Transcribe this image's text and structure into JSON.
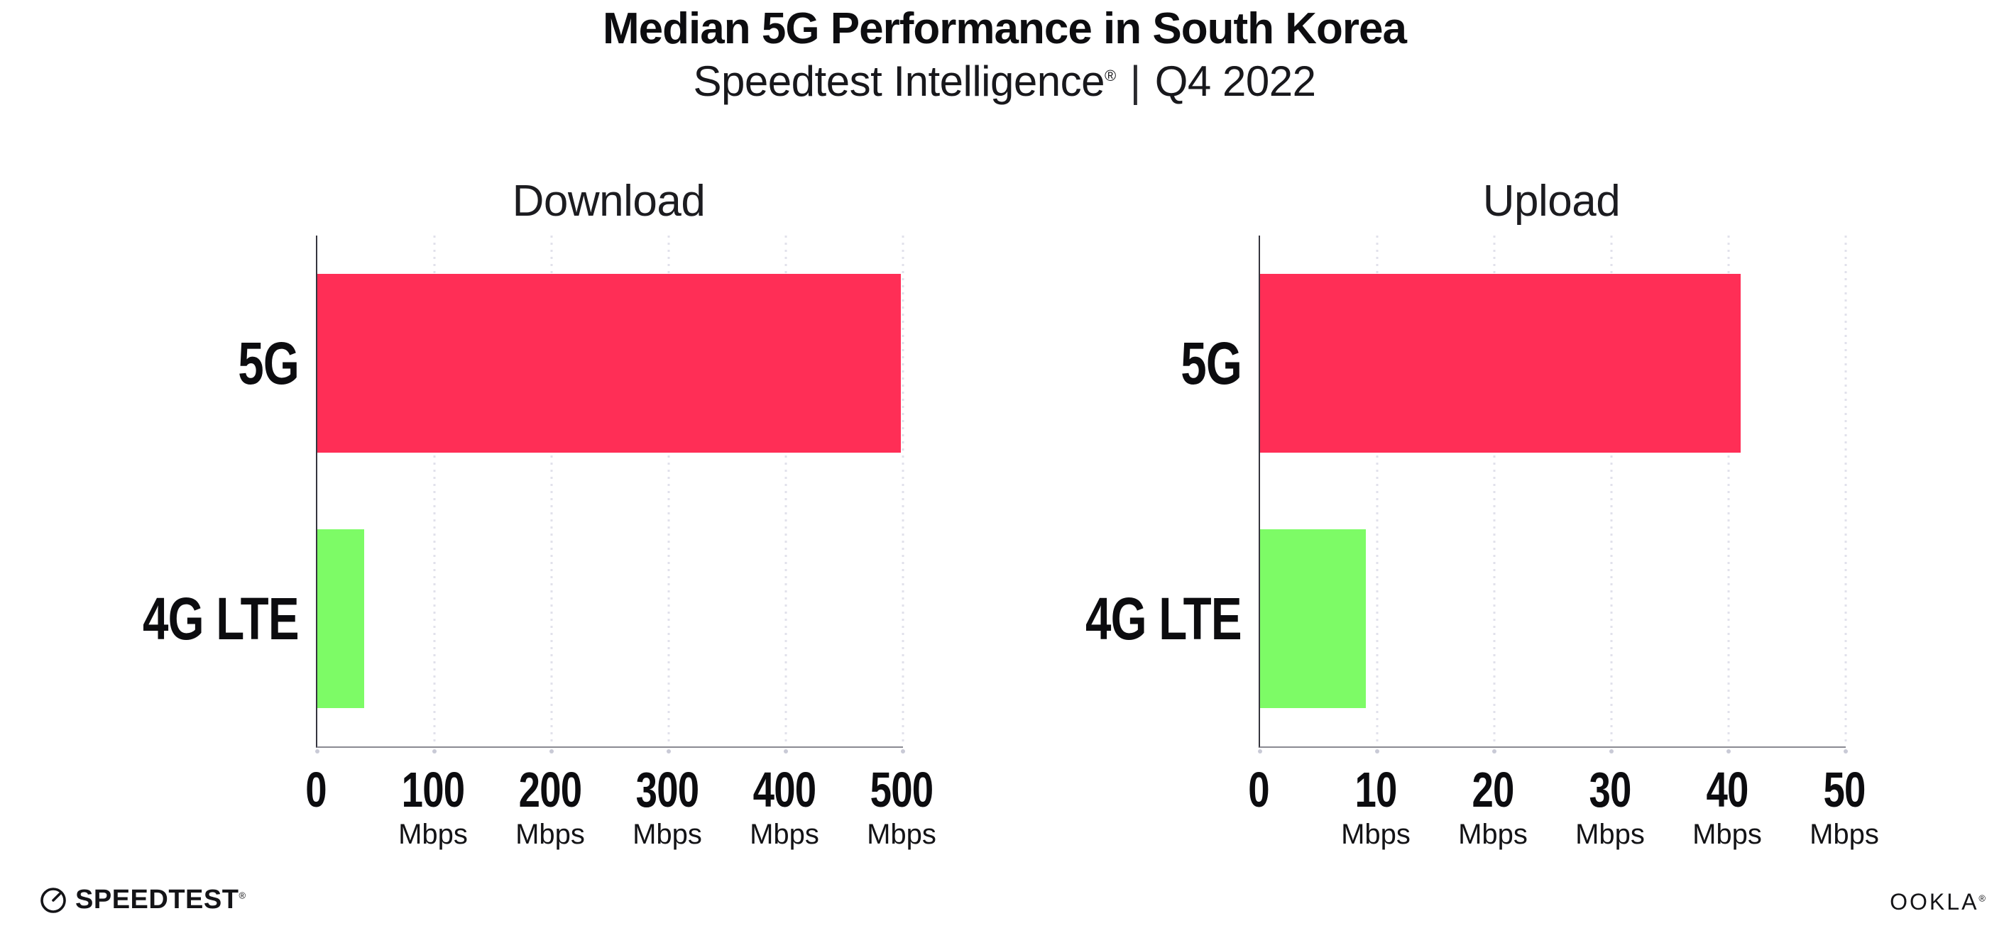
{
  "header": {
    "title": "Median 5G Performance in South Korea",
    "subtitle": {
      "brand": "Speedtest Intelligence",
      "mark": "®",
      "separator": "|",
      "period": "Q4 2022"
    }
  },
  "footer": {
    "speedtest_logo_text": "SPEEDTEST",
    "speedtest_logo_mark": "®",
    "speedtest_icon": "gauge-icon",
    "ookla_logo_text": "OOKLA",
    "ookla_logo_mark": "®"
  },
  "colors": {
    "bar_5g": "#FF2E56",
    "bar_4g_lte": "#7DFB66",
    "gridline": "#E1E1EB",
    "tick_mark": "#C9CAD6",
    "axis_spine_left": "#35353E",
    "axis_spine_bottom": "#8A8A92",
    "text": "#0D0D10",
    "background": "#FFFFFF"
  },
  "chart_data": [
    {
      "type": "bar",
      "orientation": "horizontal",
      "title": "Download",
      "categories": [
        "5G",
        "4G LTE"
      ],
      "values": [
        498,
        40
      ],
      "unit": "Mbps",
      "xlabel": "",
      "ylabel": "",
      "xlim": [
        0,
        500
      ],
      "xticks": [
        0,
        100,
        200,
        300,
        400,
        500
      ],
      "bar_colors": [
        "#FF2E56",
        "#7DFB66"
      ],
      "grid": "vertical-dotted",
      "legend": "none"
    },
    {
      "type": "bar",
      "orientation": "horizontal",
      "title": "Upload",
      "categories": [
        "5G",
        "4G LTE"
      ],
      "values": [
        41,
        9
      ],
      "unit": "Mbps",
      "xlabel": "",
      "ylabel": "",
      "xlim": [
        0,
        50
      ],
      "xticks": [
        0,
        10,
        20,
        30,
        40,
        50
      ],
      "bar_colors": [
        "#FF2E56",
        "#7DFB66"
      ],
      "grid": "vertical-dotted",
      "legend": "none"
    }
  ]
}
